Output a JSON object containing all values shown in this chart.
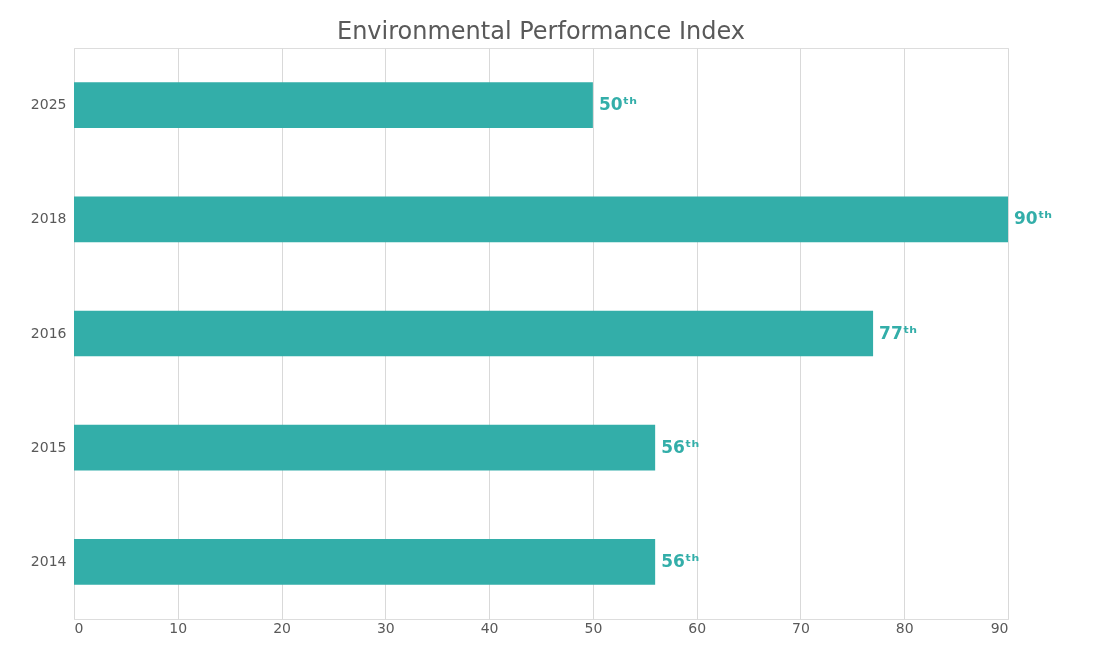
{
  "chart_data": {
    "type": "bar",
    "orientation": "horizontal",
    "title": "Environmental Performance Index",
    "categories": [
      "2025",
      "2018",
      "2016",
      "2015",
      "2014"
    ],
    "values": [
      50,
      90,
      77,
      56,
      56
    ],
    "value_labels": [
      "50ᵗʰ",
      "90ᵗʰ",
      "77ᵗʰ",
      "56ᵗʰ",
      "56ᵗʰ"
    ],
    "color": "#33aea9",
    "xlim": [
      0,
      90
    ],
    "xticks": [
      0,
      10,
      20,
      30,
      40,
      50,
      60,
      70,
      80,
      90
    ],
    "grid": "x"
  }
}
